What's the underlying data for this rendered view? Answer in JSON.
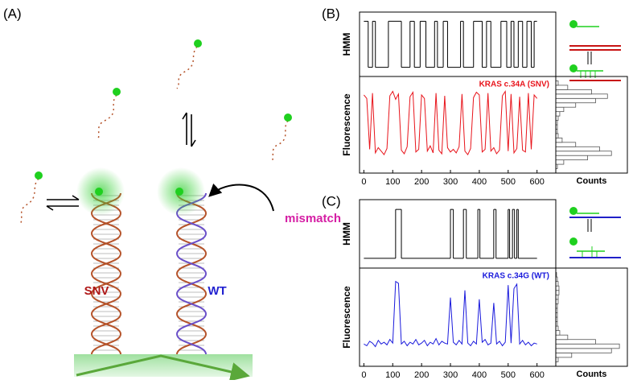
{
  "panel_a": {
    "label": "(A)",
    "mismatch": "mismatch",
    "snv": "SNV",
    "wt": "WT"
  },
  "chart_data": [
    {
      "type": "step",
      "panel_label": "(B)",
      "y_label": "HMM",
      "color": "#000000",
      "xlim": [
        -15,
        665
      ],
      "ylim": [
        -0.2,
        1.2
      ],
      "x": [
        0,
        15,
        30,
        40,
        85,
        130,
        160,
        175,
        195,
        215,
        245,
        255,
        275,
        290,
        335,
        345,
        380,
        410,
        425,
        440,
        475,
        495,
        510,
        520,
        535,
        550,
        565,
        580,
        590,
        600
      ],
      "values": [
        1,
        0,
        1,
        0,
        1,
        0,
        1,
        0,
        1,
        0,
        1,
        0,
        1,
        0,
        1,
        0,
        1,
        0,
        1,
        0,
        1,
        0,
        1,
        0,
        1,
        0,
        1,
        0,
        1,
        1
      ]
    },
    {
      "type": "line",
      "y_label": "Fluorescence",
      "annotation": "KRAS c.34A (SNV)",
      "color": "#e8141b",
      "xlim": [
        -15,
        665
      ],
      "ylim": [
        -0.05,
        1.05
      ],
      "xticks": [
        0,
        100,
        200,
        300,
        400,
        500,
        600
      ],
      "x": [
        0,
        10,
        20,
        30,
        40,
        50,
        60,
        70,
        80,
        90,
        100,
        110,
        120,
        130,
        140,
        150,
        160,
        170,
        180,
        190,
        200,
        210,
        220,
        230,
        240,
        250,
        260,
        270,
        280,
        290,
        300,
        310,
        320,
        330,
        340,
        350,
        360,
        370,
        380,
        390,
        400,
        410,
        420,
        430,
        440,
        450,
        460,
        470,
        480,
        490,
        500,
        510,
        520,
        530,
        540,
        550,
        560,
        570,
        580,
        590,
        600
      ],
      "values": [
        0.84,
        0.8,
        0.22,
        0.86,
        0.18,
        0.24,
        0.2,
        0.16,
        0.23,
        0.83,
        0.88,
        0.79,
        0.85,
        0.21,
        0.17,
        0.25,
        0.82,
        0.87,
        0.19,
        0.22,
        0.84,
        0.8,
        0.2,
        0.26,
        0.18,
        0.86,
        0.21,
        0.17,
        0.83,
        0.24,
        0.19,
        0.22,
        0.18,
        0.25,
        0.85,
        0.2,
        0.16,
        0.23,
        0.81,
        0.87,
        0.84,
        0.19,
        0.22,
        0.86,
        0.2,
        0.24,
        0.17,
        0.21,
        0.83,
        0.88,
        0.2,
        0.85,
        0.18,
        0.23,
        0.82,
        0.21,
        0.19,
        0.86,
        0.22,
        0.84,
        0.8
      ]
    },
    {
      "type": "histogram",
      "orientation": "horizontal",
      "x_label": "Counts",
      "color": "#555555",
      "xlim": [
        0,
        90
      ],
      "ylim": [
        -0.05,
        1.05
      ],
      "bins": [
        0,
        0.05,
        0.1,
        0.15,
        0.2,
        0.25,
        0.3,
        0.35,
        0.4,
        0.45,
        0.5,
        0.55,
        0.6,
        0.65,
        0.7,
        0.75,
        0.8,
        0.85,
        0.9,
        0.95,
        1
      ],
      "values": [
        2,
        10,
        40,
        70,
        55,
        25,
        8,
        3,
        2,
        2,
        2,
        3,
        5,
        10,
        25,
        50,
        65,
        45,
        15,
        3
      ]
    },
    {
      "type": "step",
      "panel_label": "(C)",
      "y_label": "HMM",
      "color": "#000000",
      "xlim": [
        -15,
        665
      ],
      "ylim": [
        -0.2,
        1.2
      ],
      "x": [
        0,
        110,
        130,
        300,
        310,
        345,
        355,
        395,
        402,
        450,
        458,
        500,
        505,
        515,
        522,
        530,
        535,
        600
      ],
      "values": [
        0,
        1,
        0,
        1,
        0,
        1,
        0,
        1,
        0,
        1,
        0,
        1,
        0,
        1,
        0,
        1,
        0,
        0
      ]
    },
    {
      "type": "line",
      "y_label": "Fluorescence",
      "annotation": "KRAS c.34G (WT)",
      "color": "#1a1adc",
      "xlim": [
        -15,
        665
      ],
      "ylim": [
        -0.05,
        1.05
      ],
      "xticks": [
        0,
        100,
        200,
        300,
        400,
        500,
        600
      ],
      "x": [
        0,
        10,
        20,
        30,
        40,
        50,
        60,
        70,
        80,
        90,
        100,
        110,
        120,
        130,
        140,
        150,
        160,
        170,
        180,
        190,
        200,
        210,
        220,
        230,
        240,
        250,
        260,
        270,
        280,
        290,
        300,
        310,
        320,
        330,
        340,
        350,
        360,
        370,
        380,
        390,
        400,
        410,
        420,
        430,
        440,
        450,
        460,
        470,
        480,
        490,
        500,
        510,
        520,
        530,
        540,
        550,
        560,
        570,
        580,
        590,
        600
      ],
      "values": [
        0.2,
        0.18,
        0.23,
        0.21,
        0.17,
        0.24,
        0.2,
        0.22,
        0.19,
        0.25,
        0.21,
        0.9,
        0.88,
        0.2,
        0.23,
        0.18,
        0.22,
        0.2,
        0.25,
        0.19,
        0.21,
        0.24,
        0.18,
        0.22,
        0.2,
        0.26,
        0.19,
        0.23,
        0.21,
        0.2,
        0.72,
        0.22,
        0.19,
        0.24,
        0.2,
        0.8,
        0.21,
        0.18,
        0.23,
        0.2,
        0.7,
        0.22,
        0.25,
        0.19,
        0.21,
        0.66,
        0.2,
        0.23,
        0.18,
        0.22,
        0.86,
        0.21,
        0.82,
        0.87,
        0.2,
        0.24,
        0.19,
        0.22,
        0.18,
        0.21,
        0.2
      ]
    },
    {
      "type": "histogram",
      "orientation": "horizontal",
      "x_label": "Counts",
      "color": "#555555",
      "xlim": [
        0,
        90
      ],
      "ylim": [
        -0.05,
        1.05
      ],
      "bins": [
        0,
        0.05,
        0.1,
        0.15,
        0.2,
        0.25,
        0.3,
        0.35,
        0.4,
        0.45,
        0.5,
        0.55,
        0.6,
        0.65,
        0.7,
        0.75,
        0.8,
        0.85,
        0.9,
        0.95,
        1
      ],
      "values": [
        3,
        20,
        70,
        80,
        50,
        15,
        5,
        3,
        2,
        2,
        2,
        2,
        2,
        3,
        3,
        4,
        4,
        3,
        2,
        1
      ]
    }
  ]
}
